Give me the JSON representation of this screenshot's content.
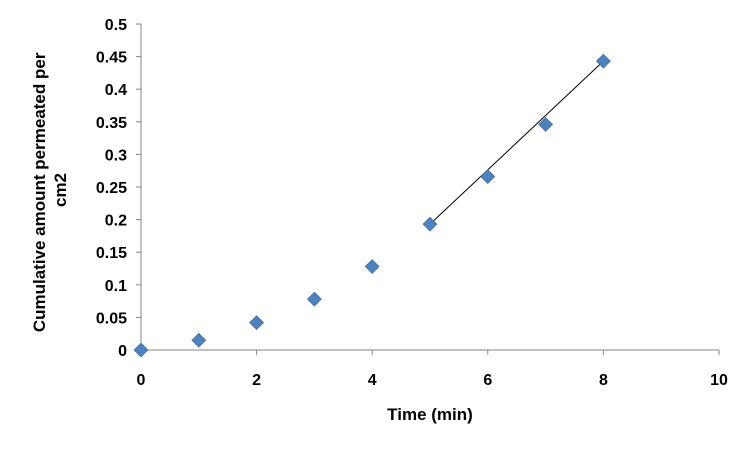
{
  "chart_data": {
    "type": "scatter",
    "title": "",
    "xlabel": "Time (min)",
    "ylabel_lines": [
      "Cumulative amount permeated per",
      "cm2"
    ],
    "xlim": [
      0,
      10
    ],
    "ylim": [
      0,
      0.5
    ],
    "x_ticks": [
      "0",
      "2",
      "4",
      "6",
      "8",
      "10"
    ],
    "y_ticks": [
      "0",
      "0.05",
      "0.1",
      "0.15",
      "0.2",
      "0.25",
      "0.3",
      "0.35",
      "0.4",
      "0.45",
      "0.5"
    ],
    "grid": false,
    "legend": "none",
    "marker": "diamond",
    "marker_color": "#4F81BD",
    "trendline_color": "#000000",
    "series": [
      {
        "x": [
          0,
          1,
          2,
          3,
          4,
          5,
          6,
          7,
          8
        ],
        "y": [
          0,
          0.015,
          0.042,
          0.078,
          0.128,
          0.193,
          0.266,
          0.346,
          0.443
        ]
      }
    ],
    "trendline": {
      "x": [
        5,
        8
      ],
      "y": [
        0.193,
        0.443
      ]
    }
  }
}
